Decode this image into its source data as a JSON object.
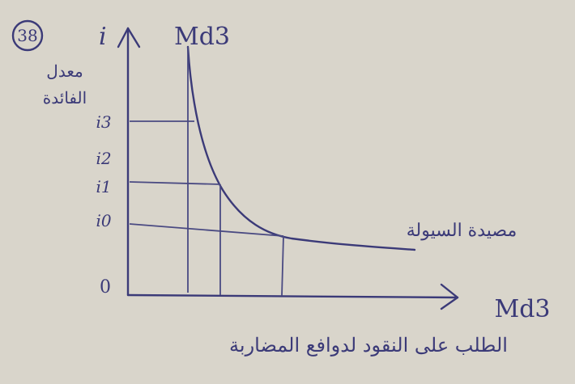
{
  "figure_number": "38",
  "y_axis": {
    "symbol": "i",
    "label_lines": [
      "معدل",
      "الفائدة"
    ],
    "ticks": [
      "i3",
      "i2",
      "i1",
      "i0"
    ],
    "origin": "0"
  },
  "curve_label": "Md3",
  "annotation": "مصيدة السيولة",
  "x_axis": {
    "label": "Md3",
    "caption": "الطلب على النقود لدوافع المضاربة"
  }
}
